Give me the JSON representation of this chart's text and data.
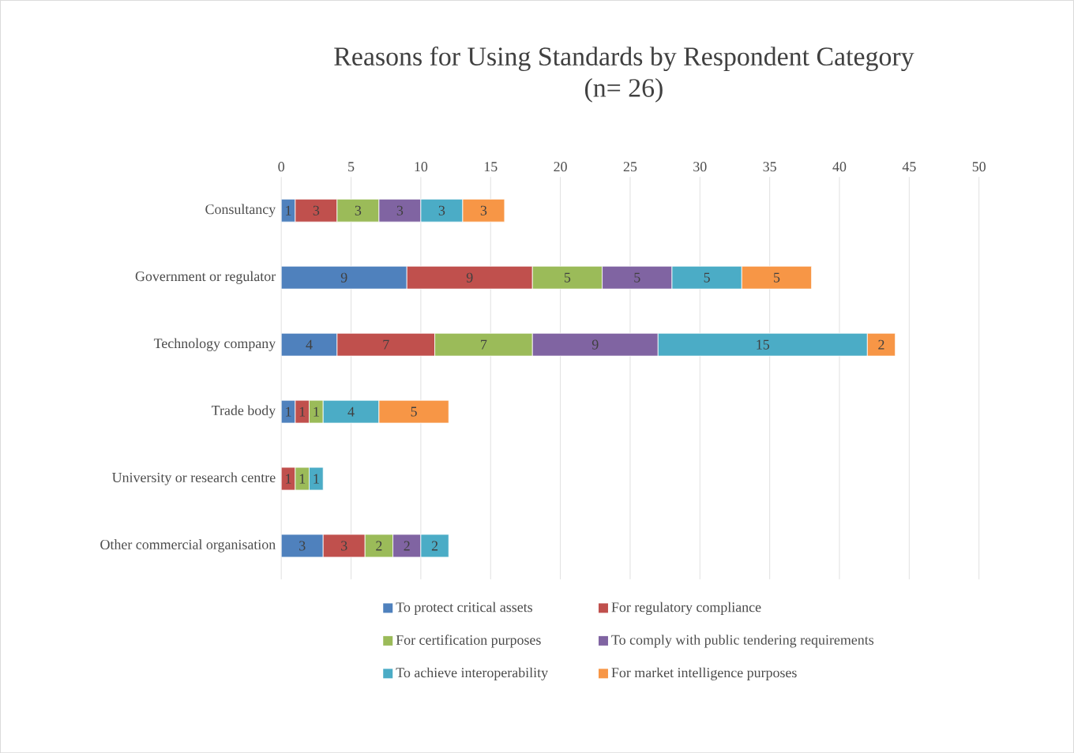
{
  "chart_data": {
    "type": "bar",
    "orientation": "horizontal",
    "stacked": true,
    "title": "Reasons for Using Standards by Respondent Category",
    "subtitle": "(n= 26)",
    "categories": [
      "Consultancy",
      "Government or regulator",
      "Technology company",
      "Trade body",
      "University or research centre",
      "Other commercial organisation"
    ],
    "series": [
      {
        "name": "To protect critical assets",
        "color": "#4f81bd",
        "values": [
          1,
          9,
          4,
          1,
          null,
          3
        ]
      },
      {
        "name": "For regulatory compliance",
        "color": "#c0504d",
        "values": [
          3,
          9,
          7,
          1,
          1,
          3
        ]
      },
      {
        "name": "For certification purposes",
        "color": "#9bbb59",
        "values": [
          3,
          5,
          7,
          1,
          1,
          2
        ]
      },
      {
        "name": "To comply with public tendering requirements",
        "color": "#8064a2",
        "values": [
          3,
          5,
          9,
          null,
          null,
          2
        ]
      },
      {
        "name": "To achieve interoperability",
        "color": "#4bacc6",
        "values": [
          3,
          5,
          15,
          4,
          1,
          2
        ]
      },
      {
        "name": "For market intelligence purposes",
        "color": "#f79646",
        "values": [
          3,
          5,
          2,
          5,
          null,
          null
        ]
      }
    ],
    "xlim": [
      0,
      50
    ],
    "xticks": [
      0,
      5,
      10,
      15,
      20,
      25,
      30,
      35,
      40,
      45,
      50
    ],
    "grid": "x",
    "legend": "bottom",
    "data_labels": true
  }
}
